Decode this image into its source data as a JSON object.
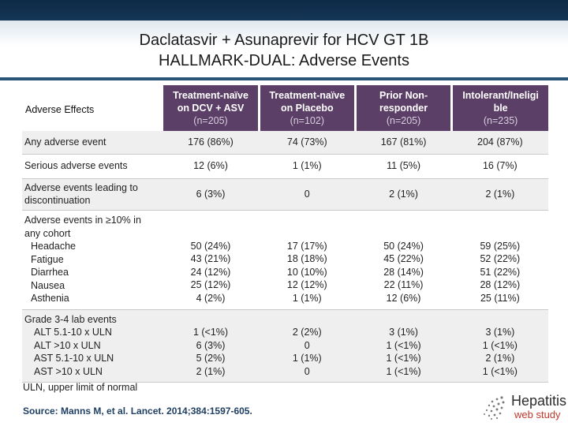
{
  "title": [
    "Daclatasvir + Asunaprevir for HCV GT 1B",
    "HALLMARK-DUAL: Adverse Events"
  ],
  "table": {
    "label_header": "Adverse Effects",
    "columns": [
      {
        "name": [
          "Treatment-naïve",
          "on DCV + ASV"
        ],
        "n": "(n=205)"
      },
      {
        "name": [
          "Treatment-naïve",
          "on Placebo"
        ],
        "n": "(n=102)"
      },
      {
        "name": [
          "Prior Non-",
          "responder"
        ],
        "n": "(n=205)"
      },
      {
        "name": [
          "Intolerant/Ineligi",
          "ble"
        ],
        "n": "(n=235)"
      }
    ],
    "rows": [
      {
        "label": [
          "Any adverse event"
        ],
        "values": [
          [
            "176 (86%)"
          ],
          [
            "74 (73%)"
          ],
          [
            "167 (81%)"
          ],
          [
            "204 (87%)"
          ]
        ]
      },
      {
        "label": [
          "Serious adverse events"
        ],
        "values": [
          [
            "12 (6%)"
          ],
          [
            "1 (1%)"
          ],
          [
            "11 (5%)"
          ],
          [
            "16 (7%)"
          ]
        ]
      },
      {
        "label": [
          "Adverse events leading to",
          "discontinuation"
        ],
        "values": [
          [
            "6 (3%)"
          ],
          [
            "0"
          ],
          [
            "2 (1%)"
          ],
          [
            "2 (1%)"
          ]
        ]
      },
      {
        "label": [
          "Adverse events in ≥10% in",
          "any cohort"
        ],
        "sublabels": [
          "Headache",
          "Fatigue",
          "Diarrhea",
          "Nausea",
          "Asthenia"
        ],
        "values": [
          [
            "50 (24%)",
            "43 (21%)",
            "24 (12%)",
            "25 (12%)",
            "4 (2%)"
          ],
          [
            "17 (17%)",
            "18 (18%)",
            "10 (10%)",
            "12 (12%)",
            "1 (1%)"
          ],
          [
            "50 (24%)",
            "45 (22%)",
            "28 (14%)",
            "22 (11%)",
            "12 (6%)"
          ],
          [
            "59 (25%)",
            "52 (22%)",
            "51 (22%)",
            "28 (12%)",
            "25 (11%)"
          ]
        ]
      },
      {
        "label": [
          "Grade 3-4 lab events"
        ],
        "sublabels": [
          "ALT 5.1-10 x ULN",
          "ALT >10 x ULN",
          "AST 5.1-10 x ULN",
          "AST >10 x ULN"
        ],
        "values": [
          [
            "1 (<1%)",
            "6 (3%)",
            "5 (2%)",
            "2 (1%)"
          ],
          [
            "2 (2%)",
            "0",
            "1 (1%)",
            "0"
          ],
          [
            "3 (1%)",
            "1 (<1%)",
            "1 (<1%)",
            "1 (<1%)"
          ],
          [
            "3 (1%)",
            "1 (<1%)",
            "2 (1%)",
            "1 (<1%)"
          ]
        ]
      }
    ]
  },
  "footnote": "ULN, upper limit of normal",
  "source": "Source: Manns M, et al. Lancet. 2014;384:1597-605.",
  "logo": {
    "word": "Hepatitis",
    "sub": "web study"
  },
  "colors": {
    "header_bg": "#5b3f66",
    "row_shade": "#efefef",
    "source_text": "#1f3f63",
    "logo_sub": "#c0392b"
  }
}
